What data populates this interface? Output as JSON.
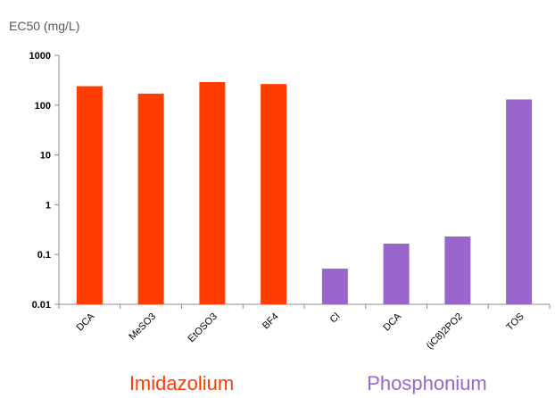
{
  "chart_data": {
    "type": "bar",
    "ylabel": "EC50 (mg/L)",
    "yscale": "log",
    "ylim": [
      0.01,
      1000
    ],
    "yticks": [
      {
        "value": 1000,
        "label": "1000"
      },
      {
        "value": 100,
        "label": "100"
      },
      {
        "value": 10,
        "label": "10"
      },
      {
        "value": 1,
        "label": "1"
      },
      {
        "value": 0.1,
        "label": "0.1"
      },
      {
        "value": 0.01,
        "label": "0.01"
      }
    ],
    "grid": false,
    "categories": [
      "DCA",
      "MeSO3",
      "EtOSO3",
      "BF4",
      "Cl",
      "DCA",
      "(iC8)2PO2",
      "TOS"
    ],
    "values": [
      240,
      170,
      290,
      265,
      0.052,
      0.165,
      0.23,
      130
    ],
    "groups": [
      {
        "label": "Imidazolium",
        "color": "#ff3d00",
        "start": 0,
        "count": 4
      },
      {
        "label": "Phosphonium",
        "color": "#9966cc",
        "start": 4,
        "count": 4
      }
    ]
  }
}
